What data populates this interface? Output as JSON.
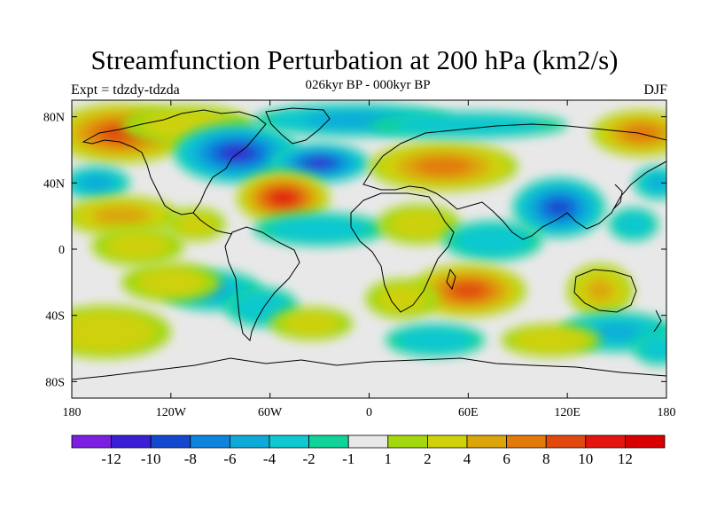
{
  "figure": {
    "title": "Streamfunction Perturbation at 200 hPa (km2/s)",
    "subtitle": "026kyr BP - 000kyr BP",
    "left_label": "Expt = tdzdy-tdzda",
    "right_label": "DJF"
  },
  "map": {
    "projection": "cylindrical-equidistant",
    "lon_range": [
      -180,
      180
    ],
    "lat_range": [
      -90,
      90
    ],
    "x_ticks": [
      {
        "lon": -180,
        "label": "180"
      },
      {
        "lon": -120,
        "label": "120W"
      },
      {
        "lon": -60,
        "label": "60W"
      },
      {
        "lon": 0,
        "label": "0"
      },
      {
        "lon": 60,
        "label": "60E"
      },
      {
        "lon": 120,
        "label": "120E"
      },
      {
        "lon": 180,
        "label": "180"
      }
    ],
    "y_ticks": [
      {
        "lat": 80,
        "label": "80N"
      },
      {
        "lat": 40,
        "label": "40N"
      },
      {
        "lat": 0,
        "label": "0"
      },
      {
        "lat": -40,
        "label": "40S"
      },
      {
        "lat": -80,
        "label": "80S"
      }
    ],
    "background_color": "#e8e8e8",
    "anomaly_blobs": [
      {
        "lon": -150,
        "lat": 70,
        "rlon": 42,
        "rlat": 18,
        "value": 9
      },
      {
        "lon": -110,
        "lat": 75,
        "rlon": 40,
        "rlat": 12,
        "value": 2
      },
      {
        "lon": -80,
        "lat": 58,
        "rlon": 38,
        "rlat": 18,
        "value": -10
      },
      {
        "lon": -30,
        "lat": 52,
        "rlon": 30,
        "rlat": 12,
        "value": -10
      },
      {
        "lon": -10,
        "lat": 78,
        "rlon": 60,
        "rlat": 10,
        "value": -5
      },
      {
        "lon": -52,
        "lat": 31,
        "rlon": 28,
        "rlat": 16,
        "value": 11
      },
      {
        "lon": -30,
        "lat": 12,
        "rlon": 40,
        "rlat": 10,
        "value": -3
      },
      {
        "lon": -165,
        "lat": 40,
        "rlon": 20,
        "rlat": 10,
        "value": -5
      },
      {
        "lon": -150,
        "lat": 20,
        "rlon": 35,
        "rlat": 12,
        "value": 5
      },
      {
        "lon": -140,
        "lat": 2,
        "rlon": 28,
        "rlat": 12,
        "value": 2
      },
      {
        "lon": -105,
        "lat": 15,
        "rlon": 18,
        "rlat": 10,
        "value": 2
      },
      {
        "lon": -95,
        "lat": -25,
        "rlon": 30,
        "rlat": 12,
        "value": -4
      },
      {
        "lon": -120,
        "lat": -20,
        "rlon": 30,
        "rlat": 12,
        "value": 2
      },
      {
        "lon": -160,
        "lat": -50,
        "rlon": 40,
        "rlat": 16,
        "value": 3
      },
      {
        "lon": -65,
        "lat": -35,
        "rlon": 22,
        "rlat": 12,
        "value": -3
      },
      {
        "lon": -35,
        "lat": -45,
        "rlon": 25,
        "rlat": 10,
        "value": 2
      },
      {
        "lon": 45,
        "lat": 50,
        "rlon": 45,
        "rlat": 15,
        "value": 7
      },
      {
        "lon": 60,
        "lat": 75,
        "rlon": 60,
        "rlat": 8,
        "value": -3
      },
      {
        "lon": 165,
        "lat": 70,
        "rlon": 30,
        "rlat": 14,
        "value": 7
      },
      {
        "lon": 30,
        "lat": 15,
        "rlon": 25,
        "rlat": 12,
        "value": 2
      },
      {
        "lon": 115,
        "lat": 25,
        "rlon": 28,
        "rlat": 18,
        "value": -9
      },
      {
        "lon": 75,
        "lat": 5,
        "rlon": 30,
        "rlat": 12,
        "value": -3
      },
      {
        "lon": 175,
        "lat": 40,
        "rlon": 15,
        "rlat": 10,
        "value": -4
      },
      {
        "lon": 160,
        "lat": 15,
        "rlon": 15,
        "rlat": 10,
        "value": -3
      },
      {
        "lon": 60,
        "lat": -25,
        "rlon": 35,
        "rlat": 16,
        "value": 9
      },
      {
        "lon": 140,
        "lat": -25,
        "rlon": 20,
        "rlat": 16,
        "value": 4
      },
      {
        "lon": 20,
        "lat": -30,
        "rlon": 22,
        "rlat": 12,
        "value": 2
      },
      {
        "lon": 40,
        "lat": -55,
        "rlon": 30,
        "rlat": 10,
        "value": -3
      },
      {
        "lon": 150,
        "lat": -50,
        "rlon": 35,
        "rlat": 12,
        "value": -4
      },
      {
        "lon": 110,
        "lat": -55,
        "rlon": 30,
        "rlat": 10,
        "value": 3
      },
      {
        "lon": 175,
        "lat": -60,
        "rlon": 15,
        "rlat": 10,
        "value": -3
      }
    ]
  },
  "colorbar": {
    "labels": [
      "-12",
      "-10",
      "-8",
      "-6",
      "-4",
      "-2",
      "-1",
      "1",
      "2",
      "4",
      "6",
      "8",
      "10",
      "12"
    ],
    "colors": [
      "#7b1fe0",
      "#3a1fd6",
      "#1448cf",
      "#0f84dc",
      "#0faad8",
      "#0fc8d0",
      "#10d39a",
      "#e8e8e8",
      "#a3d70e",
      "#cfd10b",
      "#dca50b",
      "#e27a0c",
      "#e0480e",
      "#e2160e",
      "#d80000"
    ]
  }
}
